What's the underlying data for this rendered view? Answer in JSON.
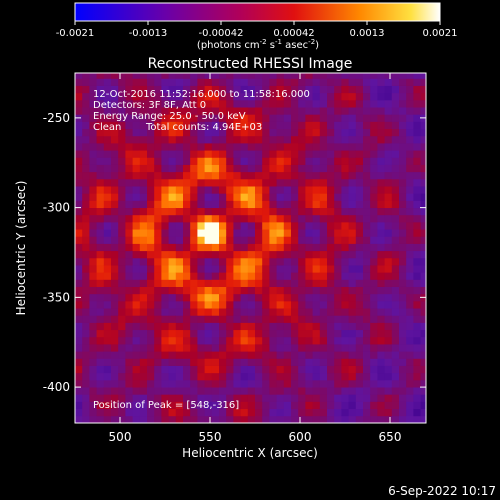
{
  "chart_data": {
    "type": "heatmap",
    "title": "Reconstructed RHESSI Image",
    "xlabel": "Heliocentric X (arcsec)",
    "ylabel": "Heliocentric Y (arcsec)",
    "xlim": [
      475,
      670
    ],
    "ylim": [
      -420,
      -225
    ],
    "x_ticks": [
      500,
      550,
      600,
      650
    ],
    "y_ticks": [
      -250,
      -300,
      -350,
      -400
    ],
    "colorbar": {
      "ticks": [
        "-0.0021",
        "-0.0013",
        "-0.00042",
        "0.00042",
        "0.0013",
        "0.0021"
      ],
      "range": [
        -0.0021,
        0.0021
      ],
      "units_prefix": "(photons cm",
      "units_exp1": "-2",
      "units_mid": " s",
      "units_exp2": "-1",
      "units_mid2": " asec",
      "units_exp3": "-2",
      "units_suffix": ")"
    },
    "annotations": {
      "time_range": "12-Oct-2016 11:52:16.000 to 11:58:16.000",
      "detectors": "Detectors: 3F 8F, Att 0",
      "energy": "Energy Range: 25.0 - 50.0 keV",
      "clean": "Clean",
      "counts": "Total counts: 4.94E+03",
      "peak": "Position of Peak = [548,-316]"
    },
    "peak_position": [
      548,
      -316
    ],
    "grid": false,
    "legend": "top"
  },
  "footer": {
    "date": "6-Sep-2022 10:17"
  }
}
